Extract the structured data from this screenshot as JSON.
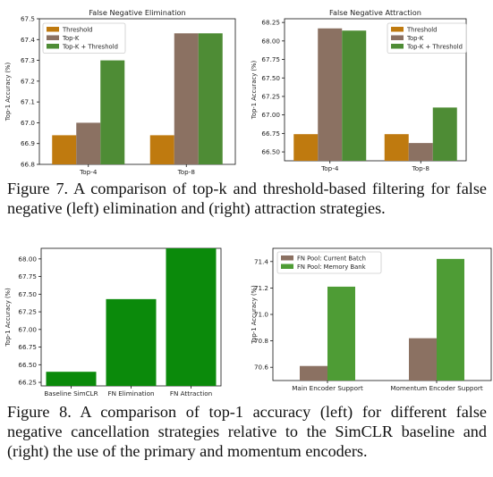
{
  "captions": {
    "fig7": "Figure 7. A comparison of top-k and threshold-based filtering for false negative (left) elimination and (right) attraction strategies.",
    "fig8": "Figure 8. A comparison of top-1 accuracy (left) for different false negative cancellation strategies relative to the SimCLR baseline and (right) the use of the primary and momentum encoders."
  },
  "colors": {
    "threshold": "#bf7a0f",
    "topk": "#8b7162",
    "topk_threshold": "#4e8c35",
    "fn_strategy": "#0b8a0b",
    "current_batch": "#8b7162",
    "memory_bank": "#4e9c35"
  },
  "chart_data": [
    {
      "id": "fig7-left",
      "type": "bar",
      "title": "False Negative Elimination",
      "ylabel": "Top-1 Accuracy (%)",
      "xlabel": "",
      "categories": [
        "Top-4",
        "Top-8"
      ],
      "series": [
        {
          "name": "Threshold",
          "color": "#bf7a0f",
          "values": [
            66.94,
            66.94
          ]
        },
        {
          "name": "Top-K",
          "color": "#8b7162",
          "values": [
            67.0,
            67.43
          ]
        },
        {
          "name": "Top-K + Threshold",
          "color": "#4e8c35",
          "values": [
            67.3,
            67.43
          ]
        }
      ],
      "ylim": [
        66.8,
        67.5
      ],
      "yticks": [
        "66.8",
        "66.9",
        "67.0",
        "67.1",
        "67.2",
        "67.3",
        "67.4",
        "67.5"
      ],
      "legend": "top-left",
      "grid": false
    },
    {
      "id": "fig7-right",
      "type": "bar",
      "title": "False Negative Attraction",
      "ylabel": "Top-1 Accuracy (%)",
      "xlabel": "",
      "categories": [
        "Top-4",
        "Top-8"
      ],
      "series": [
        {
          "name": "Threshold",
          "color": "#bf7a0f",
          "values": [
            66.74,
            66.74
          ]
        },
        {
          "name": "Top-K",
          "color": "#8b7162",
          "values": [
            68.17,
            66.62
          ]
        },
        {
          "name": "Top-K + Threshold",
          "color": "#4e8c35",
          "values": [
            68.14,
            67.1
          ]
        }
      ],
      "ylim": [
        66.38,
        68.3
      ],
      "yticks": [
        "66.50",
        "66.75",
        "67.00",
        "67.25",
        "67.50",
        "67.75",
        "68.00",
        "68.25"
      ],
      "legend": "top-right",
      "grid": false
    },
    {
      "id": "fig8-left",
      "type": "bar",
      "title": "",
      "ylabel": "Top-1 Accuracy (%)",
      "xlabel": "",
      "categories": [
        "Baseline SimCLR",
        "FN Elimination",
        "FN Attraction"
      ],
      "series": [
        {
          "name": "",
          "color": "#0b8a0b",
          "values": [
            66.4,
            67.43,
            68.15
          ]
        }
      ],
      "ylim": [
        66.2,
        68.15
      ],
      "yticks": [
        "66.25",
        "66.50",
        "66.75",
        "67.00",
        "67.25",
        "67.50",
        "67.75",
        "68.00"
      ],
      "legend": "none",
      "grid": false
    },
    {
      "id": "fig8-right",
      "type": "bar",
      "title": "",
      "ylabel": "Top-1 Accuracy (%)",
      "xlabel": "",
      "categories": [
        "Main Encoder Support",
        "Momentum Encoder Support"
      ],
      "series": [
        {
          "name": "FN Pool: Current Batch",
          "color": "#8b7162",
          "values": [
            70.61,
            70.82
          ]
        },
        {
          "name": "FN Pool: Memory Bank",
          "color": "#4e9c35",
          "values": [
            71.21,
            71.42
          ]
        }
      ],
      "ylim": [
        70.5,
        71.5
      ],
      "yticks": [
        "70.6",
        "70.8",
        "71.0",
        "71.2",
        "71.4"
      ],
      "legend": "top-left",
      "grid": false
    }
  ]
}
